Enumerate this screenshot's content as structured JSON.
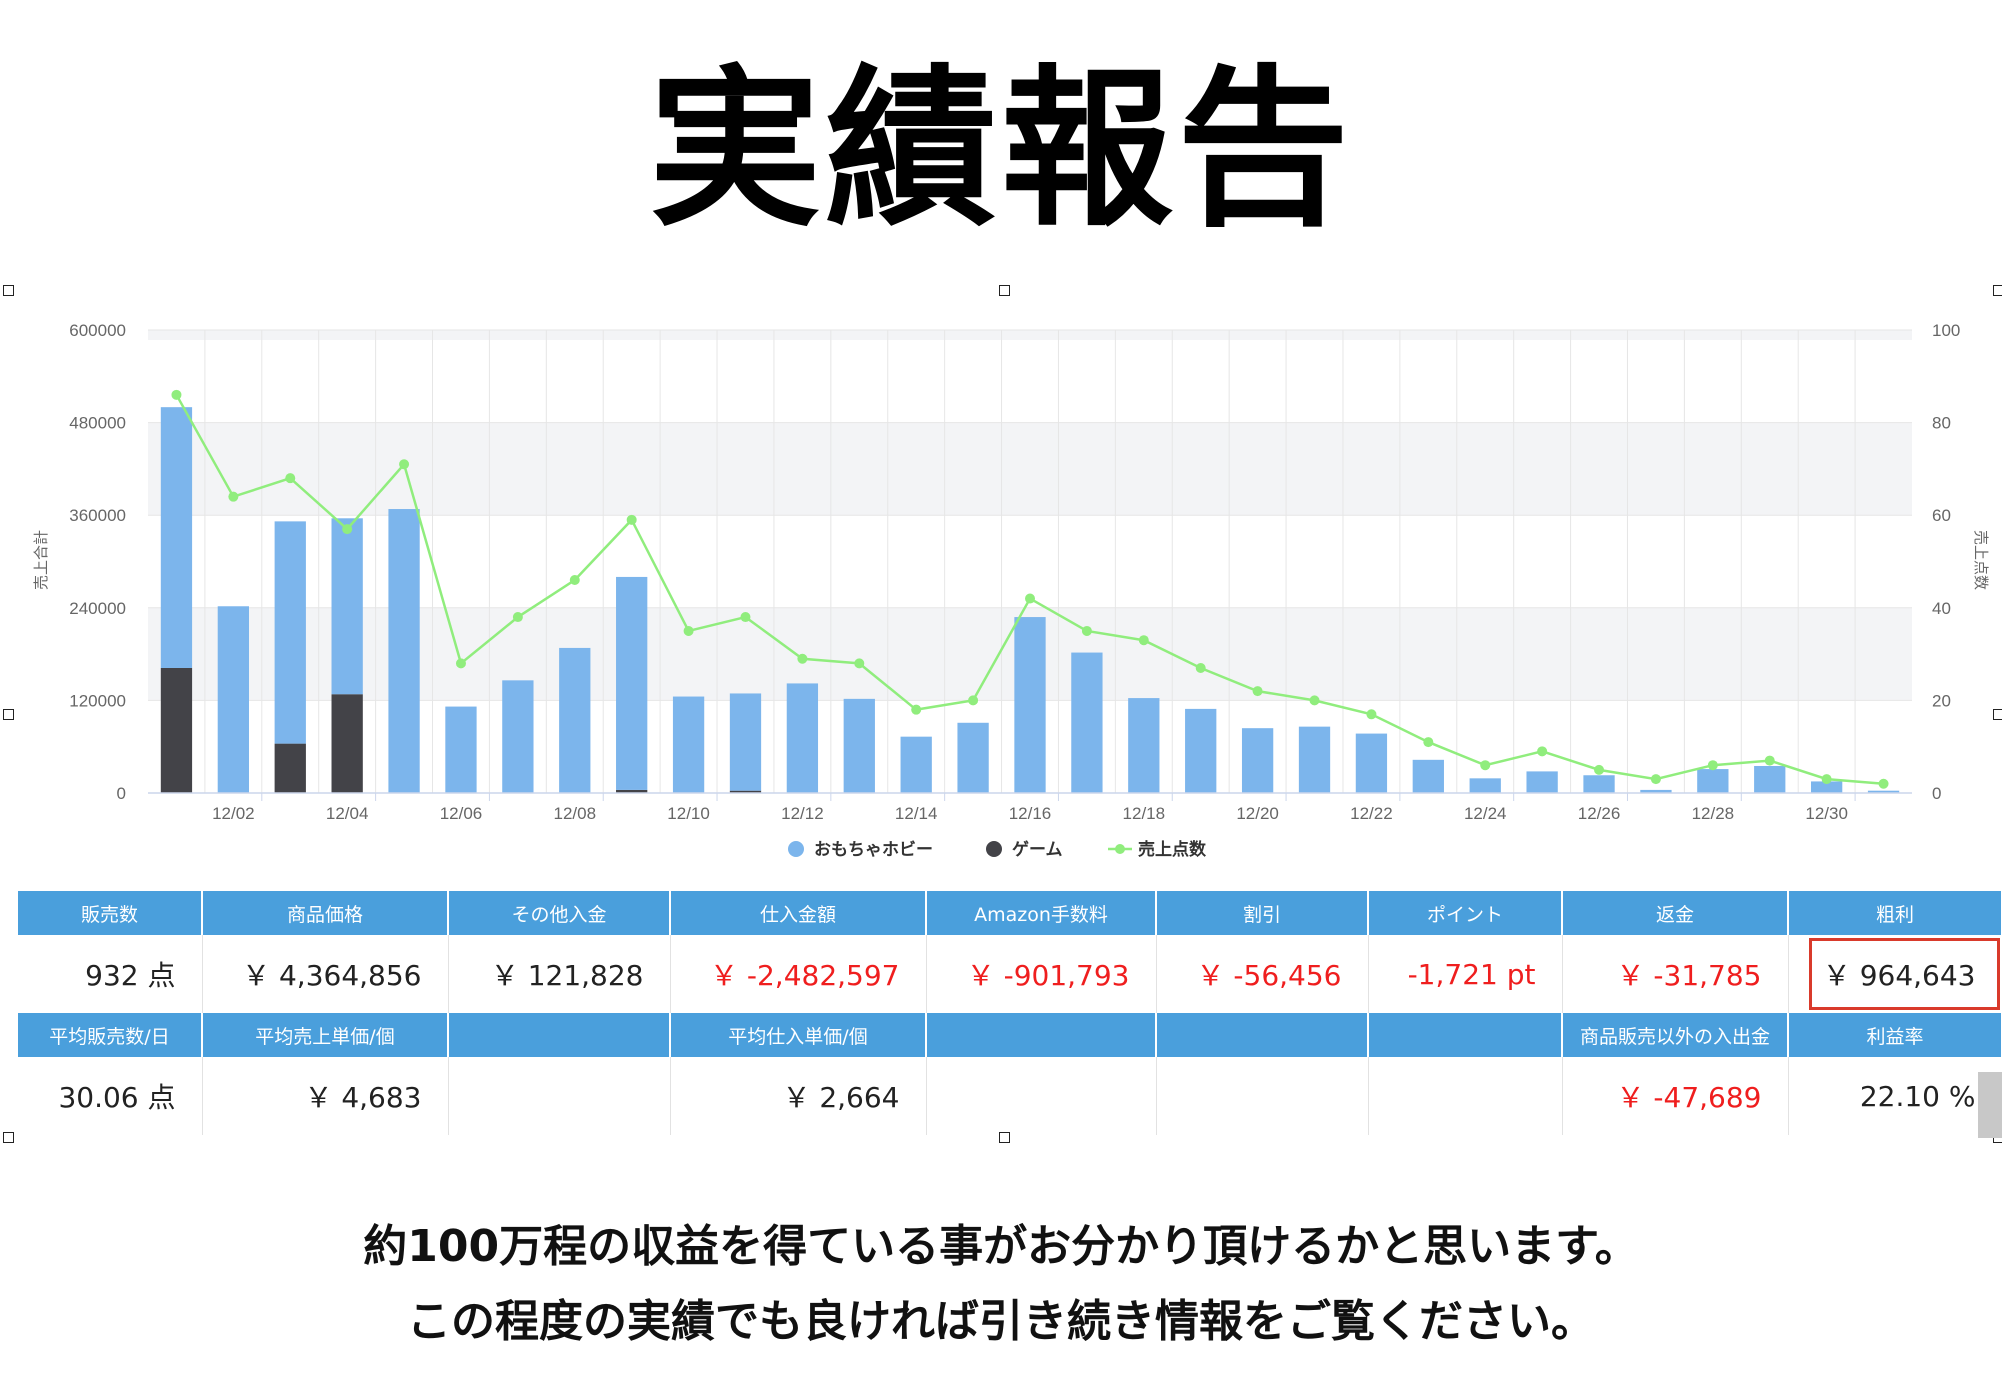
{
  "page_title": "実績報告",
  "chart_data": {
    "type": "bar",
    "stacked": true,
    "x": [
      "12/01",
      "12/02",
      "12/03",
      "12/04",
      "12/05",
      "12/06",
      "12/07",
      "12/08",
      "12/09",
      "12/10",
      "12/11",
      "12/12",
      "12/13",
      "12/14",
      "12/15",
      "12/16",
      "12/17",
      "12/18",
      "12/19",
      "12/20",
      "12/21",
      "12/22",
      "12/23",
      "12/24",
      "12/25",
      "12/26",
      "12/27",
      "12/28",
      "12/29",
      "12/30",
      "12/31"
    ],
    "x_tick_labels": [
      "12/02",
      "12/04",
      "12/06",
      "12/08",
      "12/10",
      "12/12",
      "12/14",
      "12/16",
      "12/18",
      "12/20",
      "12/22",
      "12/24",
      "12/26",
      "12/28",
      "12/30"
    ],
    "series": [
      {
        "name": "おもちゃホビー",
        "type": "bar",
        "axis": "left",
        "color": "#7cb5ec",
        "values": [
          338000,
          242000,
          288000,
          228000,
          368000,
          112000,
          146000,
          188000,
          276000,
          125000,
          126000,
          142000,
          122000,
          73000,
          91000,
          228000,
          182000,
          123000,
          109000,
          84000,
          86000,
          77000,
          43000,
          19000,
          28000,
          23000,
          4000,
          31000,
          35000,
          15000,
          3000
        ]
      },
      {
        "name": "ゲーム",
        "type": "bar",
        "axis": "left",
        "color": "#434348",
        "values": [
          162000,
          0,
          64000,
          128000,
          0,
          0,
          0,
          0,
          4000,
          0,
          3000,
          0,
          0,
          0,
          0,
          0,
          0,
          0,
          0,
          0,
          0,
          0,
          0,
          0,
          0,
          0,
          0,
          0,
          0,
          0,
          0
        ]
      },
      {
        "name": "売上点数",
        "type": "line",
        "axis": "right",
        "color": "#90ed7d",
        "values": [
          86,
          64,
          68,
          57,
          71,
          28,
          38,
          46,
          59,
          35,
          38,
          29,
          28,
          18,
          20,
          42,
          35,
          33,
          27,
          22,
          20,
          17,
          11,
          6,
          9,
          5,
          3,
          6,
          7,
          3,
          2
        ]
      }
    ],
    "ylabel": "売上合計",
    "y2label": "売上点数",
    "ylim": [
      0,
      600000
    ],
    "y_ticks": [
      0,
      120000,
      240000,
      360000,
      480000,
      600000
    ],
    "y2lim": [
      0,
      100
    ],
    "y2_ticks": [
      0,
      20,
      40,
      60,
      80,
      100
    ],
    "grid": true,
    "legend_position": "bottom-center"
  },
  "table": {
    "row1_headers": [
      "販売数",
      "商品価格",
      "その他入金",
      "仕入金額",
      "Amazon手数料",
      "割引",
      "ポイント",
      "返金",
      "粗利"
    ],
    "row1_values": [
      "932 点",
      "￥ 4,364,856",
      "￥ 121,828",
      "￥ -2,482,597",
      "￥ -901,793",
      "￥ -56,456",
      "-1,721 pt",
      "￥ -31,785",
      "￥ 964,643"
    ],
    "row2_headers": [
      "平均販売数/日",
      "平均売上単価/個",
      "",
      "平均仕入単価/個",
      "",
      "",
      "",
      "商品販売以外の入出金",
      "利益率"
    ],
    "row2_values": [
      "30.06 点",
      "￥ 4,683",
      "",
      "￥ 2,664",
      "",
      "",
      "",
      "￥ -47,689",
      "22.10 %"
    ]
  },
  "caption": {
    "line1": "約100万程の収益を得ている事がお分かり頂けるかと思います。",
    "line2": "この程度の実績でも良ければ引き続き情報をご覧ください。"
  }
}
